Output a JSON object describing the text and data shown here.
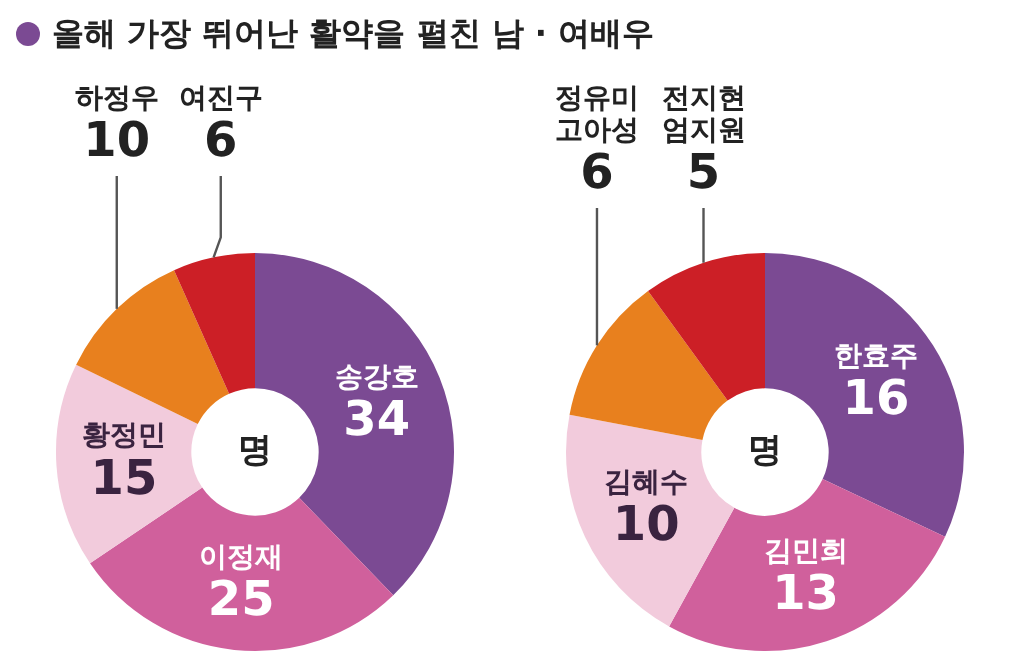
{
  "chart_data": [
    {
      "type": "donut",
      "title": "올해 가장 뛰어난 활약을 펼친 남 · 여배우",
      "categories": [
        "송강호",
        "이정재",
        "황정민",
        "하정우",
        "여진구"
      ],
      "values": [
        34,
        25,
        15,
        10,
        6
      ],
      "colors": [
        "#7b4a93",
        "#d0609c",
        "#f2cbdc",
        "#e8801e",
        "#cc1f26"
      ],
      "data_labels": true,
      "annotations": [
        "명"
      ]
    },
    {
      "type": "donut",
      "categories": [
        "한효주",
        "김민희",
        "김혜수",
        "정유미 고아성",
        "전지현 엄지원"
      ],
      "values": [
        16,
        13,
        10,
        6,
        5
      ],
      "colors": [
        "#7b4a93",
        "#d0609c",
        "#f2cbdc",
        "#e8801e",
        "#cc1f26"
      ],
      "data_labels": true,
      "annotations": [
        "명"
      ]
    }
  ]
}
